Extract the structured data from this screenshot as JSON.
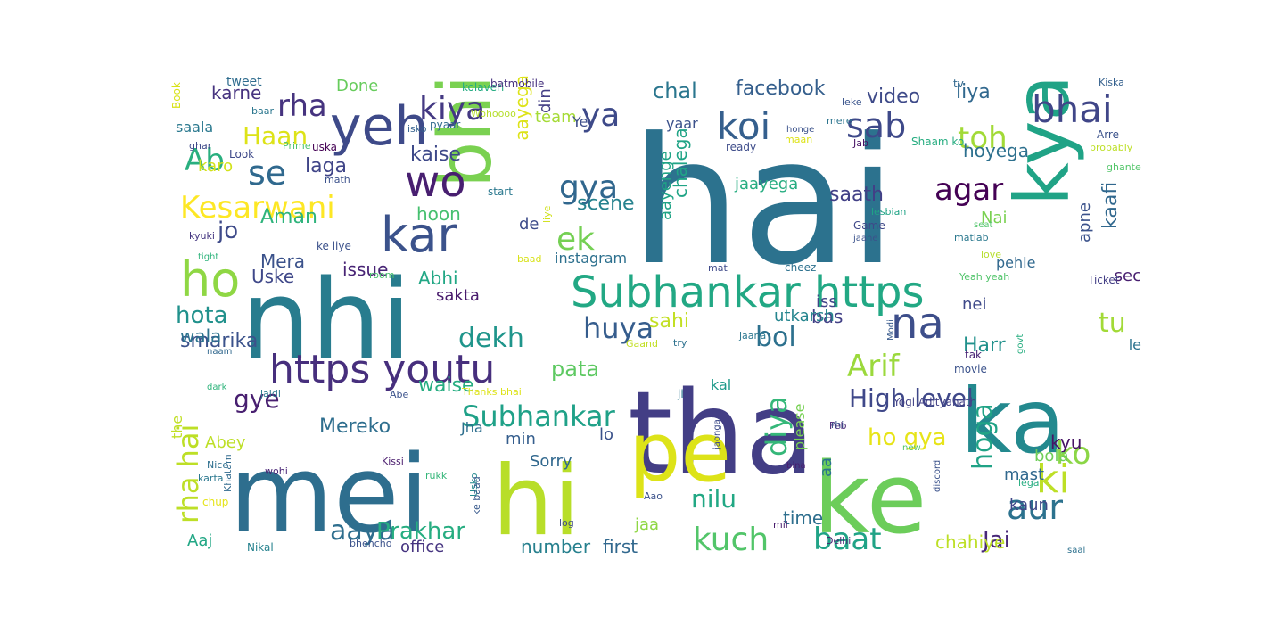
{
  "words": [
    {
      "t": "hai",
      "c": "#2c728e"
    },
    {
      "t": "nhi",
      "c": "#287c8e"
    },
    {
      "t": "tha",
      "c": "#433e85"
    },
    {
      "t": "mei",
      "c": "#2e6e8e"
    },
    {
      "t": "ka",
      "c": "#23898e"
    },
    {
      "t": "ke",
      "c": "#6ccd5a"
    },
    {
      "t": "kya",
      "c": "#20a386"
    },
    {
      "t": "bhi",
      "c": "#7ad151"
    },
    {
      "t": "hi",
      "c": "#b8de29"
    },
    {
      "t": "pe",
      "c": "#dde318"
    },
    {
      "t": "yeh",
      "c": "#3e4a89"
    },
    {
      "t": "ho",
      "c": "#8fd744"
    },
    {
      "t": "kar",
      "c": "#3b528b"
    },
    {
      "t": "wo",
      "c": "#481f70"
    },
    {
      "t": "Subhankar https",
      "c": "#22a884"
    },
    {
      "t": "https youtu",
      "c": "#472f7d"
    },
    {
      "t": "na",
      "c": "#3d4e8a"
    },
    {
      "t": "koi",
      "c": "#355f8d"
    },
    {
      "t": "sab",
      "c": "#3e4989"
    },
    {
      "t": "bhai",
      "c": "#404688"
    },
    {
      "t": "toh",
      "c": "#a2da37"
    },
    {
      "t": "kiya",
      "c": "#443983"
    },
    {
      "t": "ya",
      "c": "#3e4a89"
    },
    {
      "t": "gya",
      "c": "#31678e"
    },
    {
      "t": "se",
      "c": "#30698e"
    },
    {
      "t": "rha",
      "c": "#46337f"
    },
    {
      "t": "Ab",
      "c": "#29af7f"
    },
    {
      "t": "Haan",
      "c": "#dde318"
    },
    {
      "t": "Kesarwani",
      "c": "#fde725"
    },
    {
      "t": "ek",
      "c": "#75d054"
    },
    {
      "t": "agar",
      "c": "#440154"
    },
    {
      "t": "Arif",
      "c": "#9bd93c"
    },
    {
      "t": "huya",
      "c": "#365d8d"
    },
    {
      "t": "dekh",
      "c": "#1f958b"
    },
    {
      "t": "bol",
      "c": "#2d718e"
    },
    {
      "t": "aur",
      "c": "#2c728e"
    },
    {
      "t": "ki",
      "c": "#bddf26"
    },
    {
      "t": "ko",
      "c": "#8bd646"
    },
    {
      "t": "tu",
      "c": "#a2da37"
    },
    {
      "t": "Subhankar",
      "c": "#1fa188"
    },
    {
      "t": "High level",
      "c": "#3f4889"
    },
    {
      "t": "diya",
      "c": "#35b779"
    },
    {
      "t": "hoga",
      "c": "#20a386"
    },
    {
      "t": "kuch",
      "c": "#52c569"
    },
    {
      "t": "baat",
      "c": "#20a386"
    },
    {
      "t": "aaya",
      "c": "#2e6e8e"
    },
    {
      "t": "Prakhar",
      "c": "#27ad81"
    },
    {
      "t": "Jai",
      "c": "#482878"
    },
    {
      "t": "rha hai",
      "c": "#bddf26"
    },
    {
      "t": "nilu",
      "c": "#22a884"
    },
    {
      "t": "ho gya",
      "c": "#e7e419"
    },
    {
      "t": "chal",
      "c": "#2a768e"
    },
    {
      "t": "facebook",
      "c": "#355f8d"
    },
    {
      "t": "video",
      "c": "#3e4a89"
    },
    {
      "t": "liya",
      "c": "#31688e"
    },
    {
      "t": "hota",
      "c": "#21918c"
    },
    {
      "t": "pata",
      "c": "#5ec962"
    },
    {
      "t": "gye",
      "c": "#481f70"
    },
    {
      "t": "Mereko",
      "c": "#2e6e8e"
    },
    {
      "t": "sahi",
      "c": "#c2df23"
    },
    {
      "t": "kaise",
      "c": "#3e4989"
    },
    {
      "t": "laga",
      "c": "#404588"
    },
    {
      "t": "jo",
      "c": "#3e4a89"
    },
    {
      "t": "Aman",
      "c": "#2fb47c"
    },
    {
      "t": "saath",
      "c": "#424086"
    },
    {
      "t": "hoon",
      "c": "#46c06f"
    },
    {
      "t": "scene",
      "c": "#26828e"
    },
    {
      "t": "kaafi",
      "c": "#31688e"
    },
    {
      "t": "chalega",
      "c": "#20a486"
    },
    {
      "t": "aayenge",
      "c": "#20a486"
    },
    {
      "t": "jaayega",
      "c": "#27ad81"
    },
    {
      "t": "smarika",
      "c": "#3b528b"
    },
    {
      "t": "wala",
      "c": "#2c728e"
    },
    {
      "t": "karne",
      "c": "#46337f"
    },
    {
      "t": "Done",
      "c": "#67cc5c"
    },
    {
      "t": "aayega",
      "c": "#dde318"
    },
    {
      "t": "team",
      "c": "#a5db36"
    },
    {
      "t": "din",
      "c": "#433e85"
    },
    {
      "t": "Ye",
      "c": "#3d4d8a"
    },
    {
      "t": "Harr",
      "c": "#21918c"
    },
    {
      "t": "hoyega",
      "c": "#2d708e"
    },
    {
      "t": "Nai",
      "c": "#7ad151"
    },
    {
      "t": "sec",
      "c": "#481f70"
    },
    {
      "t": "nei",
      "c": "#3e4989"
    },
    {
      "t": "apne",
      "c": "#3b528b"
    },
    {
      "t": "pehle",
      "c": "#31688e"
    },
    {
      "t": "bas",
      "c": "#424186"
    },
    {
      "t": "kal",
      "c": "#1f9a8a"
    },
    {
      "t": "iss",
      "c": "#414487"
    },
    {
      "t": "utkarsh",
      "c": "#25858e"
    },
    {
      "t": "waise",
      "c": "#26ad81"
    },
    {
      "t": "kyu",
      "c": "#471365"
    },
    {
      "t": "mast",
      "c": "#31688e"
    },
    {
      "t": "bola",
      "c": "#6ece58"
    },
    {
      "t": "kaun",
      "c": "#3f4788"
    },
    {
      "t": "chahiye",
      "c": "#bddf26"
    },
    {
      "t": "time",
      "c": "#2e6f8e"
    },
    {
      "t": "aa",
      "c": "#2b748e"
    },
    {
      "t": "please",
      "c": "#77d153"
    },
    {
      "t": "Uske",
      "c": "#3f4889"
    },
    {
      "t": "issue",
      "c": "#482475"
    },
    {
      "t": "Mera",
      "c": "#3b528b"
    },
    {
      "t": "Abhi",
      "c": "#22a785"
    },
    {
      "t": "sakta",
      "c": "#481a6c"
    },
    {
      "t": "le",
      "c": "#2c728e"
    },
    {
      "t": "de",
      "c": "#3e4c8a"
    },
    {
      "t": "instagram",
      "c": "#2d708e"
    },
    {
      "t": "Jha",
      "c": "#2e6f8e"
    },
    {
      "t": "min",
      "c": "#355e8d"
    },
    {
      "t": "lo",
      "c": "#3b528b"
    },
    {
      "t": "Sorry",
      "c": "#31688e"
    },
    {
      "t": "jaa",
      "c": "#8fd744"
    },
    {
      "t": "first",
      "c": "#31688e"
    },
    {
      "t": "number",
      "c": "#27808e"
    },
    {
      "t": "office",
      "c": "#463480"
    },
    {
      "t": "Aaj",
      "c": "#22a785"
    },
    {
      "t": "Abey",
      "c": "#bddf26"
    },
    {
      "t": "the",
      "c": "#c0df25"
    },
    {
      "t": "karo",
      "c": "#d2e21b"
    },
    {
      "t": "saala",
      "c": "#29788e"
    },
    {
      "t": "yaar",
      "c": "#3b518b"
    },
    {
      "t": "tweet",
      "c": "#2f6c8e"
    },
    {
      "t": "Book",
      "c": "#d8e219"
    },
    {
      "t": "baar",
      "c": "#2a768e"
    },
    {
      "t": "Look",
      "c": "#3e4989"
    },
    {
      "t": "uska",
      "c": "#440154"
    },
    {
      "t": "Prime",
      "c": "#4ac16d"
    },
    {
      "t": "isko",
      "c": "#34618d"
    },
    {
      "t": "pyaar",
      "c": "#306a8e"
    },
    {
      "t": "Wohoooo",
      "c": "#b5de2b"
    },
    {
      "t": "kolaveri",
      "c": "#25ac82"
    },
    {
      "t": "batmobile",
      "c": "#46317e"
    },
    {
      "t": "ready",
      "c": "#3e4c8a"
    },
    {
      "t": "maan",
      "c": "#dde318"
    },
    {
      "t": "mere",
      "c": "#2b748e"
    },
    {
      "t": "honge",
      "c": "#3b528b"
    },
    {
      "t": "leke",
      "c": "#3a548c"
    },
    {
      "t": "Jab",
      "c": "#471365"
    },
    {
      "t": "tv",
      "c": "#31688e"
    },
    {
      "t": "Kiska",
      "c": "#34608d"
    },
    {
      "t": "Arre",
      "c": "#3b528b"
    },
    {
      "t": "probably",
      "c": "#bddf26"
    },
    {
      "t": "ghante",
      "c": "#52c569"
    },
    {
      "t": "Shaam ko",
      "c": "#27ad81"
    },
    {
      "t": "ghar",
      "c": "#3e4989"
    },
    {
      "t": "math",
      "c": "#3b518b"
    },
    {
      "t": "start",
      "c": "#2a788e"
    },
    {
      "t": "kyuki",
      "c": "#453781"
    },
    {
      "t": "tight",
      "c": "#2fb47c"
    },
    {
      "t": "ke liye",
      "c": "#3b518b"
    },
    {
      "t": "liye",
      "c": "#d0e11c"
    },
    {
      "t": "Game",
      "c": "#3f4889"
    },
    {
      "t": "lesbian",
      "c": "#20a486"
    },
    {
      "t": "jaane",
      "c": "#3b528b"
    },
    {
      "t": "matlab",
      "c": "#2a788e"
    },
    {
      "t": "seat",
      "c": "#50c46a"
    },
    {
      "t": "love",
      "c": "#b5de2b"
    },
    {
      "t": "Ticket",
      "c": "#433e85"
    },
    {
      "t": "room",
      "c": "#4ac16d"
    },
    {
      "t": "baad",
      "c": "#d8e219"
    },
    {
      "t": "mat",
      "c": "#3e4989"
    },
    {
      "t": "cheez",
      "c": "#2d718e"
    },
    {
      "t": "Yeah yeah",
      "c": "#50c46a"
    },
    {
      "t": "naam",
      "c": "#31688e"
    },
    {
      "t": "Gaand",
      "c": "#c2df23"
    },
    {
      "t": "try",
      "c": "#2d718e"
    },
    {
      "t": "Modi",
      "c": "#37598c"
    },
    {
      "t": "govt",
      "c": "#28ae80"
    },
    {
      "t": "jaana",
      "c": "#2a768e"
    },
    {
      "t": "tak",
      "c": "#482475"
    },
    {
      "t": "movie",
      "c": "#3b528b"
    },
    {
      "t": "dark",
      "c": "#2fb47c"
    },
    {
      "t": "jaldi",
      "c": "#2a778e"
    },
    {
      "t": "Abe",
      "c": "#3b528b"
    },
    {
      "t": "Thanks bhai",
      "c": "#dde318"
    },
    {
      "t": "ji",
      "c": "#2a768e"
    },
    {
      "t": "jaonga",
      "c": "#3e4c8a"
    },
    {
      "t": "Yogi Adityanath",
      "c": "#424186"
    },
    {
      "t": "Feb",
      "c": "#482475"
    },
    {
      "t": "rhi",
      "c": "#3b518b"
    },
    {
      "t": "bina",
      "c": "#481d6f"
    },
    {
      "t": "new",
      "c": "#52c569"
    },
    {
      "t": "discord",
      "c": "#3b528b"
    },
    {
      "t": "Nice",
      "c": "#2e6f8e"
    },
    {
      "t": "karta",
      "c": "#2a778e"
    },
    {
      "t": "Khatam",
      "c": "#306a8e"
    },
    {
      "t": "Kissi",
      "c": "#481a6c"
    },
    {
      "t": "wohi",
      "c": "#482475"
    },
    {
      "t": "rukk",
      "c": "#34b679"
    },
    {
      "t": "Usko",
      "c": "#23898e"
    },
    {
      "t": "ke baad",
      "c": "#37598c"
    },
    {
      "t": "chup",
      "c": "#e5e419"
    },
    {
      "t": "Nikal",
      "c": "#26828e"
    },
    {
      "t": "bhencho",
      "c": "#3b528b"
    },
    {
      "t": "log",
      "c": "#3e4a89"
    },
    {
      "t": "Aao",
      "c": "#3b528b"
    },
    {
      "t": "mil",
      "c": "#481b6d"
    },
    {
      "t": "Delhi",
      "c": "#481d6f"
    },
    {
      "t": "lega",
      "c": "#27ad81"
    },
    {
      "t": "saal",
      "c": "#2d718e"
    }
  ]
}
